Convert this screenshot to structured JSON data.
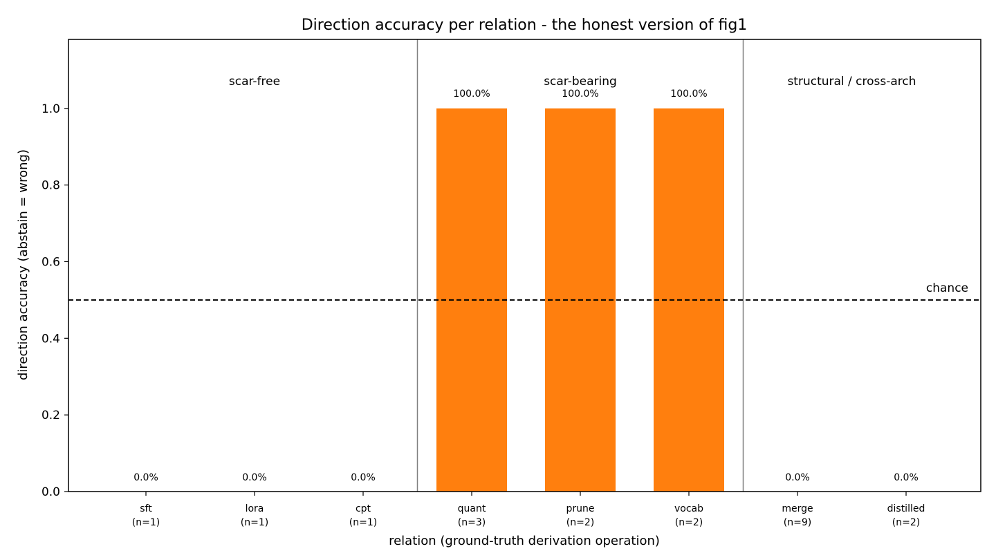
{
  "chart_data": {
    "type": "bar",
    "title": "Direction accuracy per relation - the honest version of fig1",
    "xlabel": "relation (ground-truth derivation operation)",
    "ylabel": "direction accuracy (abstain = wrong)",
    "ylim": [
      0,
      1.18
    ],
    "yticks": [
      "0.0",
      "0.2",
      "0.4",
      "0.6",
      "0.8",
      "1.0"
    ],
    "ytick_values": [
      0,
      0.2,
      0.4,
      0.6,
      0.8,
      1.0
    ],
    "categories": [
      "sft",
      "lora",
      "cpt",
      "quant",
      "prune",
      "vocab",
      "merge",
      "distilled"
    ],
    "counts": [
      "(n=1)",
      "(n=1)",
      "(n=1)",
      "(n=3)",
      "(n=2)",
      "(n=2)",
      "(n=9)",
      "(n=2)"
    ],
    "values": [
      0.0,
      0.0,
      0.0,
      1.0,
      1.0,
      1.0,
      0.0,
      0.0
    ],
    "value_labels": [
      "0.0%",
      "0.0%",
      "0.0%",
      "100.0%",
      "100.0%",
      "100.0%",
      "0.0%",
      "0.0%"
    ],
    "bar_color": "#ff7f0e",
    "groups": [
      {
        "label": "scar-free",
        "start": 0,
        "end": 2
      },
      {
        "label": "scar-bearing",
        "start": 3,
        "end": 5
      },
      {
        "label": "structural / cross-arch",
        "start": 6,
        "end": 7
      }
    ],
    "reference_line": {
      "label": "chance",
      "value": 0.5,
      "style": "dashed"
    },
    "grid": false,
    "legend": "none"
  }
}
